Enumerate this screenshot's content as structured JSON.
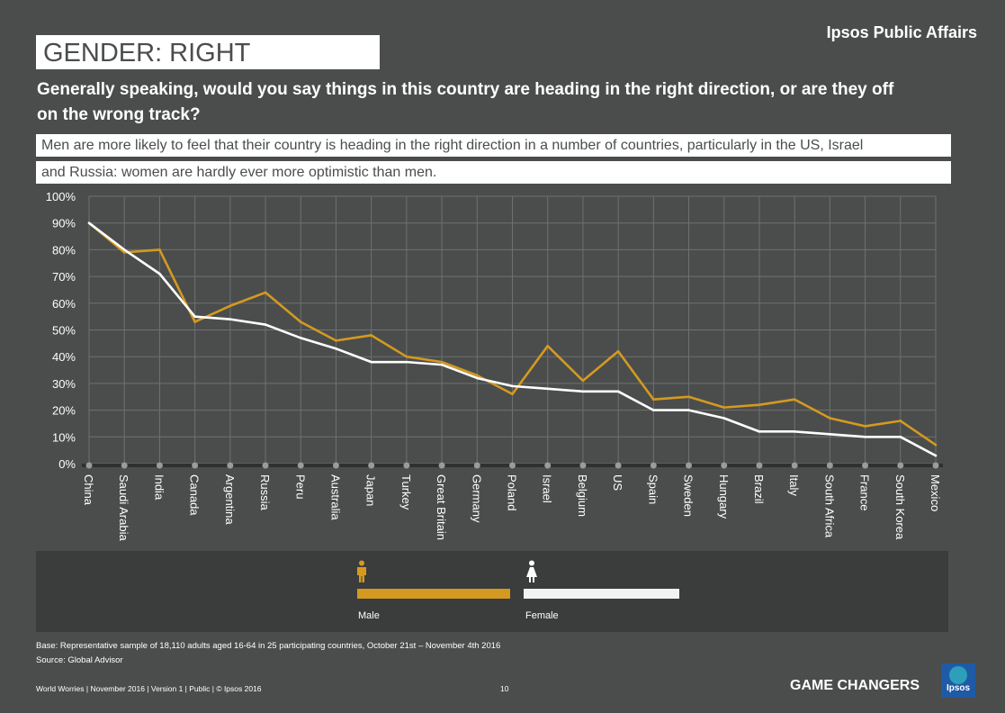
{
  "header": {
    "brand": "Ipsos Public Affairs",
    "title": "GENDER: RIGHT DIRECTION",
    "question": "Generally speaking, would you say things in this country are heading in the right direction, or are they off on the wrong track?",
    "insight_line1": "Men are more likely to feel that their country is heading in the right direction in a number of countries, particularly in the US, Israel",
    "insight_line2": "and Russia: women are hardly ever more optimistic than men."
  },
  "chart_data": {
    "type": "line",
    "categories": [
      "China",
      "Saudi Arabia",
      "India",
      "Canada",
      "Argentina",
      "Russia",
      "Peru",
      "Australia",
      "Japan",
      "Turkey",
      "Great Britain",
      "Germany",
      "Poland",
      "Israel",
      "Belgium",
      "US",
      "Spain",
      "Sweden",
      "Hungary",
      "Brazil",
      "Italy",
      "South Africa",
      "France",
      "South Korea",
      "Mexico"
    ],
    "series": [
      {
        "name": "Male",
        "color": "#d49a1f",
        "values": [
          90,
          79,
          80,
          53,
          59,
          64,
          53,
          46,
          48,
          40,
          38,
          33,
          26,
          44,
          31,
          42,
          24,
          25,
          21,
          22,
          24,
          17,
          14,
          16,
          7
        ]
      },
      {
        "name": "Female",
        "color": "#ffffff",
        "values": [
          90,
          80,
          71,
          55,
          54,
          52,
          47,
          43,
          38,
          38,
          37,
          32,
          29,
          28,
          27,
          27,
          20,
          20,
          17,
          12,
          12,
          11,
          10,
          10,
          3
        ]
      }
    ],
    "ylim": [
      0,
      100
    ],
    "yticks": [
      "0%",
      "10%",
      "20%",
      "30%",
      "40%",
      "50%",
      "60%",
      "70%",
      "80%",
      "90%",
      "100%"
    ],
    "grid": true,
    "legend_position": "bottom"
  },
  "legend": {
    "male_label": "Male",
    "female_label": "Female",
    "male_icon": "male-person-icon",
    "female_icon": "female-person-icon"
  },
  "footnotes": {
    "base": "Base: Representative sample of 18,110 adults aged 16-64 in 25 participating countries, October 21st – November 4th 2016",
    "source": "Source: Global Advisor"
  },
  "footer": {
    "left": "World Worries | November 2016 | Version 1 | Public | © Ipsos 2016",
    "page": "10",
    "tagline": "GAME CHANGERS",
    "logo_text": "Ipsos"
  }
}
